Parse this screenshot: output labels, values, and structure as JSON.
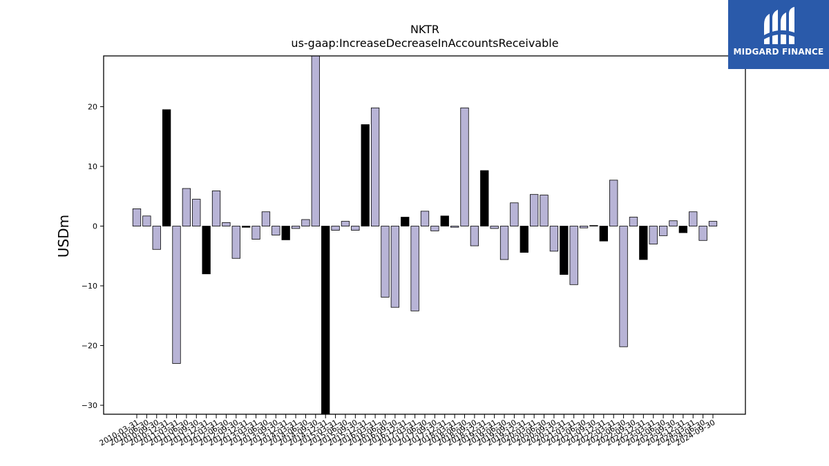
{
  "chart_data": {
    "type": "bar",
    "title": "NKTR",
    "subtitle": "us-gaap:IncreaseDecreaseInAccountsReceivable",
    "ylabel": "USDm",
    "xlabel": "",
    "ylim": [
      -31.5,
      28.5
    ],
    "yticks": [
      -30,
      -20,
      -10,
      0,
      10,
      20
    ],
    "grid": false,
    "colors": {
      "default": "#b8b4d6",
      "highlight": "#000000",
      "edge": "#000000"
    },
    "tick_labels": [
      "2010-03-31",
      "2010-06-30",
      "2010-09-30",
      "2010-12-31",
      "2011-03-31",
      "2011-06-30",
      "2011-09-30",
      "2011-12-31",
      "2012-03-31",
      "2012-06-30",
      "2012-09-30",
      "2012-12-31",
      "2013-03-31",
      "2013-06-30",
      "2013-09-30",
      "2013-12-31",
      "2014-03-31",
      "2014-06-30",
      "2014-09-30",
      "2014-12-31",
      "2015-03-31",
      "2015-06-30",
      "2015-09-30",
      "2015-12-31",
      "2016-03-31",
      "2016-06-30",
      "2016-09-30",
      "2016-12-31",
      "2017-03-31",
      "2017-06-30",
      "2017-09-30",
      "2017-12-31",
      "2018-03-31",
      "2018-06-30",
      "2018-09-30",
      "2018-12-31",
      "2019-03-31",
      "2019-06-30",
      "2019-09-30",
      "2019-12-31",
      "2020-03-31",
      "2020-06-30",
      "2020-09-30",
      "2020-12-31",
      "2021-03-31",
      "2021-06-30",
      "2021-09-30",
      "2021-12-31",
      "2022-03-31",
      "2022-06-30",
      "2022-09-30",
      "2022-12-31",
      "2023-03-31",
      "2023-06-30",
      "2023-09-30",
      "2023-12-31",
      "2024-03-31",
      "2024-06-30",
      "2024-09-30"
    ],
    "categories": [
      "2010-03-31",
      "2010-06-30",
      "2010-09-30",
      "2010-12-31",
      "2011-03-31",
      "2011-06-30",
      "2011-09-30",
      "2011-12-31",
      "2012-03-31",
      "2012-06-30",
      "2012-09-30",
      "2012-12-31",
      "2013-03-31",
      "2013-06-30",
      "2013-09-30",
      "2013-12-31",
      "2014-03-31",
      "2014-06-30",
      "2014-09-30",
      "2014-12-31",
      "2015-03-31",
      "2015-06-30",
      "2015-09-30",
      "2015-12-31",
      "2016-03-31",
      "2016-06-30",
      "2016-09-30",
      "2016-12-31",
      "2017-03-31",
      "2017-06-30",
      "2017-09-30",
      "2017-12-31",
      "2018-03-31",
      "2018-06-30",
      "2018-09-30",
      "2018-12-31",
      "2019-03-31",
      "2019-06-30",
      "2019-09-30",
      "2019-12-31",
      "2020-03-31",
      "2020-06-30",
      "2020-09-30",
      "2020-12-31",
      "2021-03-31",
      "2021-06-30",
      "2021-09-30",
      "2021-12-31",
      "2022-03-31",
      "2022-06-30",
      "2022-09-30",
      "2022-12-31",
      "2023-03-31",
      "2023-06-30",
      "2023-09-30",
      "2023-12-31",
      "2024-03-31",
      "2024-06-30",
      "2024-09-30"
    ],
    "values": [
      2.9,
      1.7,
      -3.9,
      19.5,
      -23.0,
      6.3,
      4.5,
      -8.0,
      5.9,
      0.6,
      -5.4,
      -0.2,
      -2.2,
      2.4,
      -1.5,
      -2.3,
      -0.4,
      1.1,
      28.5,
      -31.5,
      -0.7,
      0.8,
      -0.7,
      17.0,
      19.8,
      -11.9,
      -13.6,
      1.5,
      -14.2,
      2.5,
      -0.8,
      1.7,
      -0.2,
      19.8,
      -3.3,
      9.3,
      -0.4,
      -5.6,
      3.9,
      -4.4,
      5.3,
      5.2,
      -4.2,
      -8.1,
      -9.8,
      -0.3,
      0.1,
      -2.5,
      7.7,
      -20.2,
      1.5,
      -5.6,
      -3.0,
      -1.6,
      0.9,
      -1.1,
      2.4,
      -2.4,
      0.8
    ],
    "highlight": [
      false,
      false,
      false,
      true,
      false,
      false,
      false,
      true,
      false,
      false,
      false,
      true,
      false,
      false,
      false,
      true,
      false,
      false,
      false,
      true,
      false,
      false,
      false,
      true,
      false,
      false,
      false,
      true,
      false,
      false,
      false,
      true,
      false,
      false,
      false,
      true,
      false,
      false,
      false,
      true,
      false,
      false,
      false,
      true,
      false,
      false,
      false,
      true,
      false,
      false,
      false,
      true,
      false,
      false,
      false,
      true,
      false,
      false,
      false
    ]
  },
  "logo": {
    "text": "MIDGARD FINANCE",
    "background": "#2a5aaa"
  }
}
